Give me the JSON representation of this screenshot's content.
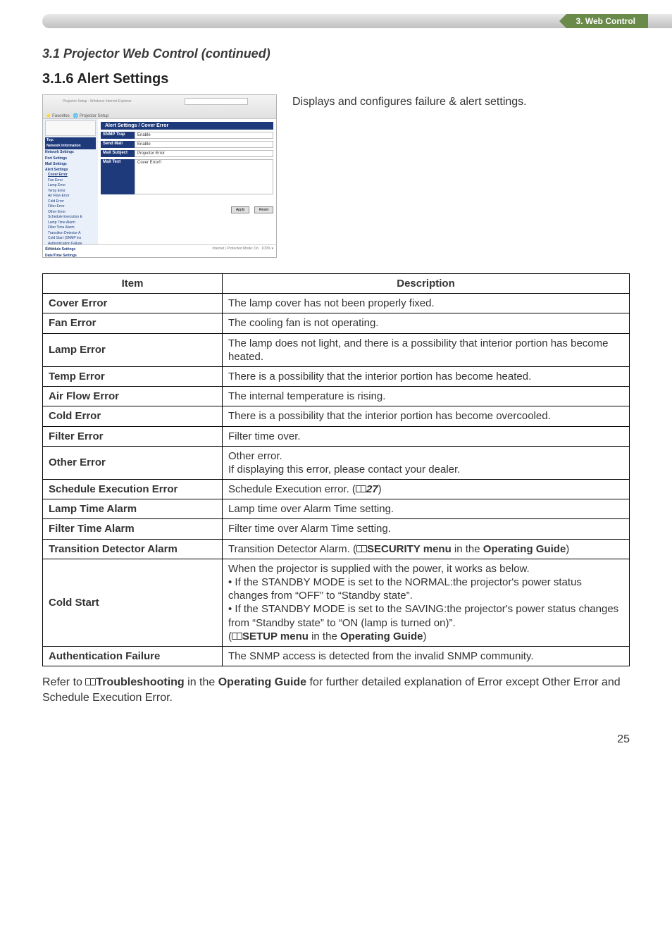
{
  "banner": {
    "chapter": "3. Web Control"
  },
  "heading": {
    "section": "3.1 Projector Web Control (continued)",
    "subsection": "3.1.6 Alert Settings"
  },
  "intro": "Displays and configures failure & alert settings.",
  "thumb": {
    "title_bar_hint": "Projector Setup - Windows Internet Explorer",
    "header": "Alert Settings / Cover Error",
    "rows": [
      {
        "label": "SNMP Trap",
        "value": "Enable"
      },
      {
        "label": "Send Mail",
        "value": "Enable"
      },
      {
        "label": "Mail Subject",
        "value": "Projector Error"
      }
    ],
    "textarea": {
      "label": "Mail Text",
      "value": "Cover Error!!"
    },
    "buttons": [
      "Apply",
      "Reset"
    ],
    "side": {
      "top_label": "Top:",
      "net_info": "Network Information",
      "groups": [
        "Network Settings",
        "Port Settings",
        "Mail Settings"
      ],
      "alert_group": "Alert Settings",
      "alert_items": [
        "Cover Error",
        "Fan Error",
        "Lamp Error",
        "Temp Error",
        "Air Flow Error",
        "Cold Error",
        "Filter Error",
        "Other Error",
        "Schedule Execution E",
        "Lamp Time Alarm",
        "Filter Time Alarm",
        "Transition Detector A",
        "Cold Start (SNMP tra",
        "Authentication Failure"
      ],
      "tail_groups": [
        "Schedule Settings",
        "Date/Time Settings"
      ]
    }
  },
  "table": {
    "head": {
      "item": "Item",
      "desc": "Description"
    },
    "rows": [
      {
        "item": "Cover Error",
        "desc": "The lamp cover has not been properly fixed."
      },
      {
        "item": "Fan Error",
        "desc": "The cooling fan is not operating."
      },
      {
        "item": "Lamp Error",
        "desc": "The lamp does not light, and there is a possibility that interior portion has become heated."
      },
      {
        "item": "Temp Error",
        "desc": "There is a possibility that the interior portion has become heated."
      },
      {
        "item": "Air Flow Error",
        "desc": "The internal temperature is rising."
      },
      {
        "item": "Cold Error",
        "desc": "There is a possibility that the interior portion has become overcooled."
      },
      {
        "item": "Filter Error",
        "desc": "Filter time over."
      },
      {
        "item": "Other Error",
        "desc": "Other error.\nIf displaying this error, please contact your dealer."
      },
      {
        "item": "Schedule Execution Error",
        "desc_prefix": "Schedule Execution error. (",
        "ref": "27",
        "desc_suffix": ")"
      },
      {
        "item": "Lamp Time Alarm",
        "desc": "Lamp time over Alarm Time setting."
      },
      {
        "item": "Filter Time Alarm",
        "desc": "Filter time over Alarm Time setting."
      },
      {
        "item": "Transition Detector Alarm",
        "desc_prefix": "Transition Detector Alarm. (",
        "bold1": "SECURITY menu",
        "mid1": " in the ",
        "bold2": "Operating Guide",
        "desc_suffix": ")"
      },
      {
        "item": "Cold Start",
        "lines": [
          "When the projector is supplied with the power, it works as below.",
          "• If the STANDBY MODE is set to the NORMAL:the projector's power status changes from “OFF” to “Standby state”.",
          "• If the STANDBY MODE is set to the SAVING:the projector's power status changes from “Standby state” to “ON (lamp is turned on)”."
        ],
        "last_open": "(",
        "last_bold1": "SETUP menu",
        "last_mid": " in the ",
        "last_bold2": "Operating Guide",
        "last_close": ")"
      },
      {
        "item": "Authentication Failure",
        "desc": "The SNMP access is detected from the invalid SNMP community."
      }
    ]
  },
  "footer_para": {
    "p1": "Refer to ",
    "bold1": "Troubleshooting",
    "p2": " in the ",
    "bold2": "Operating Guide",
    "p3": " for further detailed explanation of Error except Other Error and Schedule Execution Error."
  },
  "page": "25"
}
